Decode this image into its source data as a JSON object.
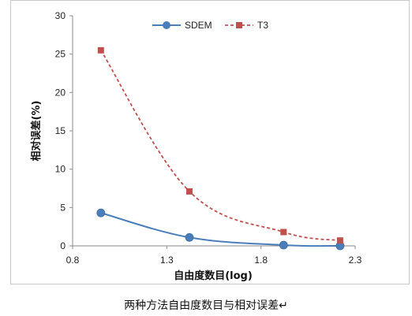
{
  "chart_data": {
    "type": "line",
    "title": "",
    "xlabel": "自由度数目(log)",
    "ylabel": "相对误差(%)",
    "xlim": [
      0.8,
      2.3
    ],
    "ylim": [
      0,
      30
    ],
    "xticks": [
      "0.8",
      "1.3",
      "1.8",
      "2.3"
    ],
    "yticks": [
      "0",
      "5",
      "10",
      "15",
      "20",
      "25",
      "30"
    ],
    "grid": false,
    "legend_position": "top",
    "series": [
      {
        "name": "SDEM",
        "color": "#4a7ebb",
        "marker": "circle",
        "line": "solid",
        "x": [
          0.95,
          1.42,
          1.92,
          2.22
        ],
        "y": [
          4.3,
          1.1,
          0.1,
          0.0
        ]
      },
      {
        "name": "T3",
        "color": "#c0504d",
        "marker": "square",
        "line": "dashed",
        "x": [
          0.95,
          1.42,
          1.92,
          2.22
        ],
        "y": [
          25.5,
          7.1,
          1.8,
          0.7
        ]
      }
    ]
  },
  "caption": "两种方法自由度数目与相对误差↵"
}
